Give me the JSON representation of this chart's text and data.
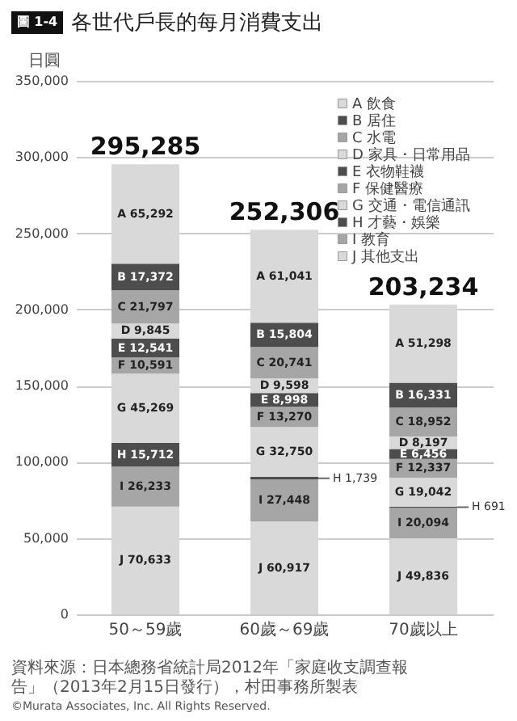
{
  "chart_data": {
    "type": "bar",
    "stacked": true,
    "title": "各世代戶長的每月消費支出",
    "ylabel": "日圓",
    "annotations": [
      "圖 1-4",
      "資料來源：日本總務省統計局2012年「家庭收支調查報告」（2013年2月15日發行），村田事務所製表",
      "©Murata Associates, Inc. All Rights Reserved."
    ],
    "categories": [
      "50～59歲",
      "60歲～69歲",
      "70歲以上"
    ],
    "ylim": [
      0,
      350000
    ],
    "yticks": [
      0,
      {
        "value": 50000,
        "label": "50,000"
      },
      {
        "value": 100000,
        "label": "100,000"
      },
      {
        "value": 150000,
        "label": "150,000"
      },
      {
        "value": 200000,
        "label": "200,000"
      },
      {
        "value": 250000,
        "label": "250,000"
      },
      {
        "value": 300000,
        "label": "300,000"
      },
      {
        "value": 350000,
        "label": "350,000"
      }
    ],
    "grid": "y",
    "legend": "top right",
    "totals": [
      "295,285",
      "252,306",
      "203,234"
    ],
    "series": [
      {
        "name": "J 其他支出",
        "color": "#d9d9d9",
        "values": [
          70633,
          60917,
          49836
        ],
        "value_labels": [
          "J    70,633",
          "J    60,917",
          "J    49,836"
        ]
      },
      {
        "name": "I 教育",
        "color": "#a6a6a6",
        "values": [
          26233,
          27448,
          20094
        ],
        "value_labels": [
          "I    26,233",
          "I    27,448",
          "I    20,094"
        ]
      },
      {
        "name": "H 才藝・娛樂",
        "color": "#4d4d4d",
        "values": [
          15712,
          1739,
          691
        ],
        "value_labels": [
          "H   15,712",
          "H 1,739",
          "H 691"
        ]
      },
      {
        "name": "G 交通・電信通訊",
        "color": "#d9d9d9",
        "values": [
          45269,
          32750,
          19042
        ],
        "value_labels": [
          "G    45,269",
          "G    32,750",
          "G    19,042"
        ]
      },
      {
        "name": "F 保健醫療",
        "color": "#a6a6a6",
        "values": [
          10591,
          13270,
          12337
        ],
        "value_labels": [
          "F    10,591",
          "F    13,270",
          "F    12,337"
        ]
      },
      {
        "name": "E 衣物鞋襪",
        "color": "#4d4d4d",
        "values": [
          12541,
          8998,
          6456
        ],
        "value_labels": [
          "E    12,541",
          "E      8,998",
          "E      6,456"
        ]
      },
      {
        "name": "D 家具・日常用品",
        "color": "#d9d9d9",
        "values": [
          9845,
          9598,
          8197
        ],
        "value_labels": [
          "D      9,845",
          "D      9,598",
          "D      8,197"
        ]
      },
      {
        "name": "C 水電",
        "color": "#a6a6a6",
        "values": [
          21797,
          20741,
          18952
        ],
        "value_labels": [
          "C    21,797",
          "C    20,741",
          "C    18,952"
        ]
      },
      {
        "name": "B 居住",
        "color": "#4d4d4d",
        "values": [
          17372,
          15804,
          16331
        ],
        "value_labels": [
          "B    17,372",
          "B    15,804",
          "B    16,331"
        ]
      },
      {
        "name": "A 飲食",
        "color": "#d9d9d9",
        "values": [
          65292,
          61041,
          51298
        ],
        "value_labels": [
          "A    65,292",
          "A    61,041",
          "A    51,298"
        ]
      }
    ]
  }
}
